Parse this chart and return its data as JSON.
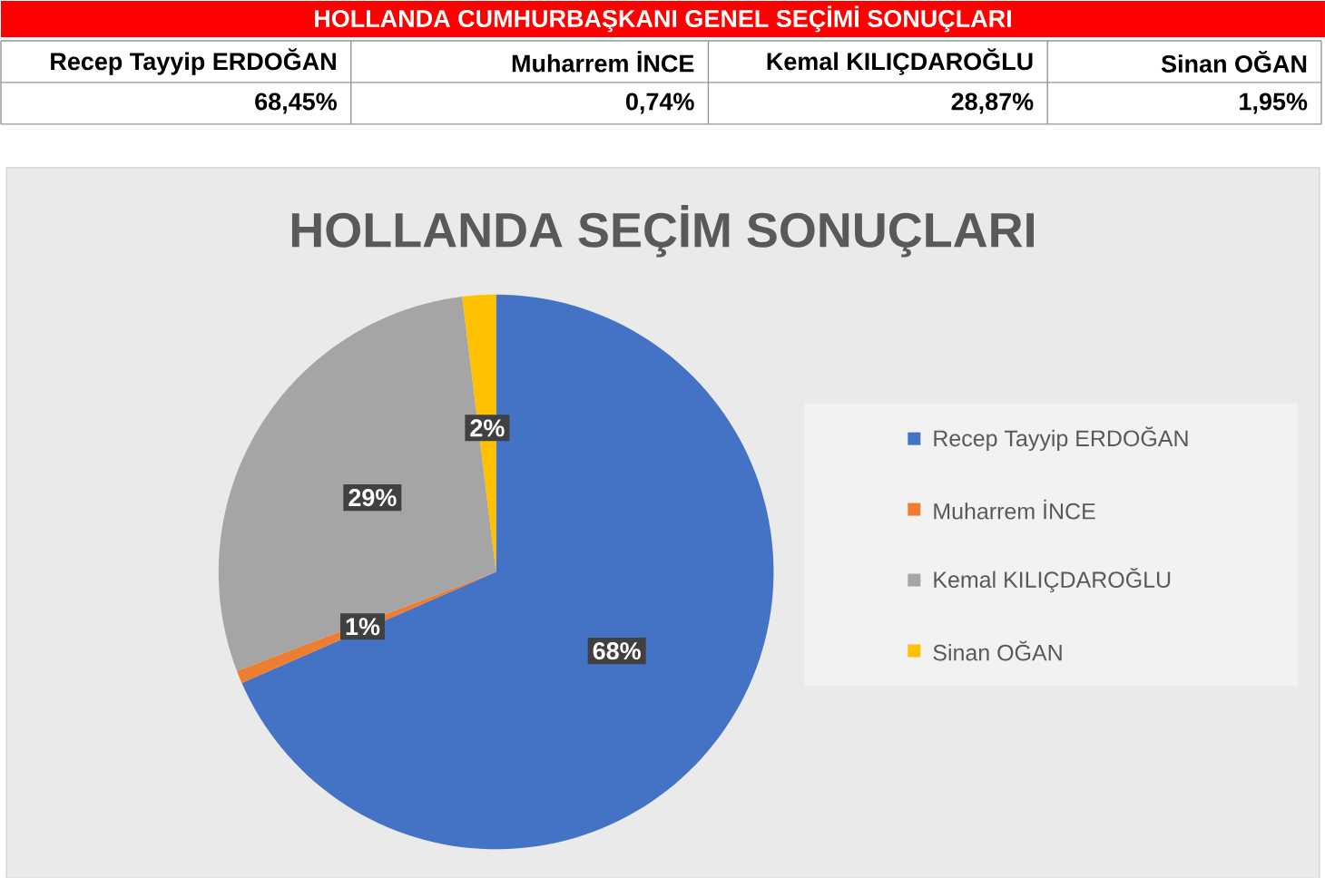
{
  "chart_data": {
    "type": "pie",
    "title": "HOLLANDA SEÇİM SONUÇLARI",
    "categories": [
      "Recep Tayyip ERDOĞAN",
      "Muharrem İNCE",
      "Kemal KILIÇDAROĞLU",
      "Sinan OĞAN"
    ],
    "values": [
      68.45,
      0.74,
      28.87,
      1.95
    ],
    "colors": [
      "#4472c4",
      "#ed7d31",
      "#a5a5a5",
      "#ffc000"
    ],
    "value_labels": [
      "68%",
      "1%",
      "29%",
      "2%"
    ],
    "legend": "right",
    "annotations": [
      "HOLLANDA CUMHURBAŞKANI GENEL SEÇİMİ SONUÇLARI",
      "68,45%",
      "0,74%",
      "28,87%",
      "1,95%"
    ]
  }
}
